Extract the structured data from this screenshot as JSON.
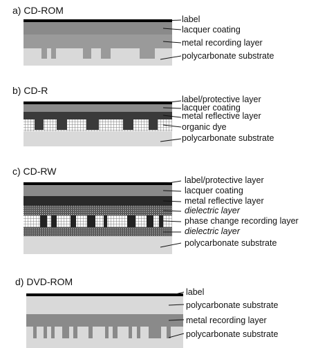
{
  "panels": [
    {
      "title": "a) CD-ROM",
      "labels": [
        "label",
        "lacquer coating",
        "metal recording layer",
        "polycarbonate substrate"
      ],
      "italic": [
        false,
        false,
        false,
        false
      ]
    },
    {
      "title": "b) CD-R",
      "labels": [
        "label/protective layer",
        "lacquer coating",
        "metal reflective layer",
        "organic dye",
        "polycarbonate substrate"
      ],
      "italic": [
        false,
        false,
        false,
        false,
        false
      ]
    },
    {
      "title": "c) CD-RW",
      "labels": [
        "label/protective layer",
        "lacquer coating",
        "metal reflective layer",
        "dielectric layer",
        "phase change recording layer",
        "dielectric layer",
        "polycarbonate substrate"
      ],
      "italic": [
        false,
        false,
        false,
        true,
        false,
        true,
        false
      ]
    },
    {
      "title": "d) DVD-ROM",
      "labels": [
        "label",
        "polycarbonate substrate",
        "metal recording layer",
        "polycarbonate substrate"
      ],
      "italic": [
        false,
        false,
        false,
        false
      ]
    }
  ],
  "colors": {
    "label": "#000000",
    "lacquer": "#8a8a8a",
    "metal": "#9a9a9a",
    "metal_dark": "#3a3a3a",
    "dye": "#c4c4c4",
    "dielectric": "#5a5a5a",
    "substrate": "#d9d9d9"
  }
}
